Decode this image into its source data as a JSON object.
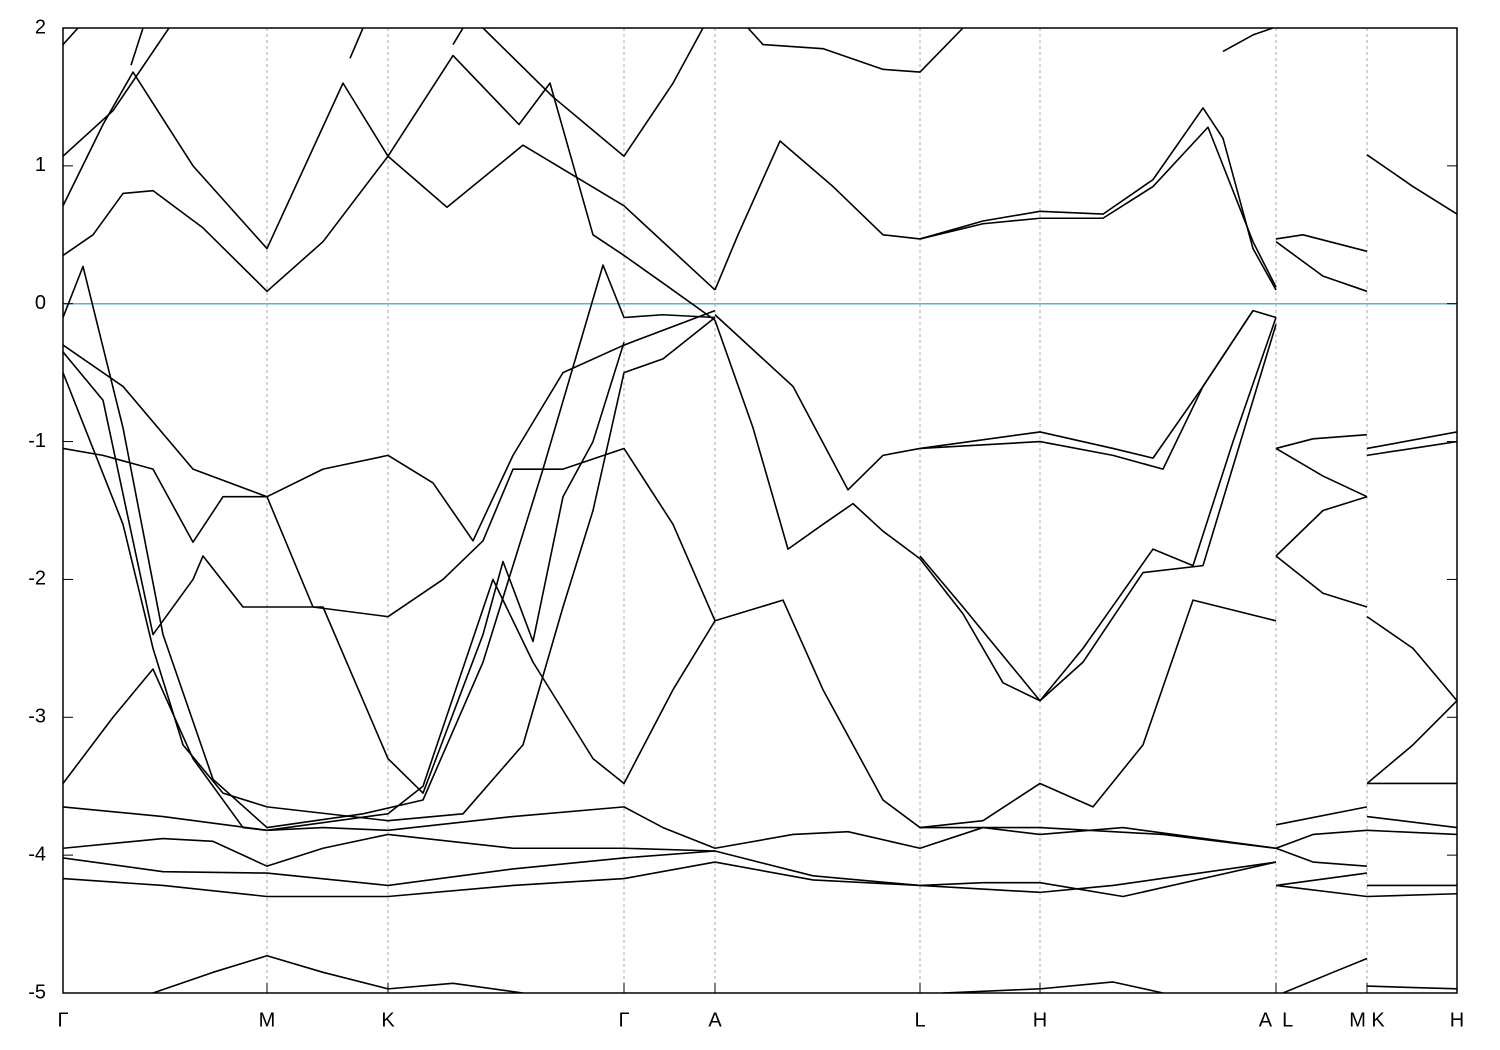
{
  "chart_data": {
    "type": "line",
    "xlim": [
      0,
      13.94
    ],
    "ylim": [
      -5,
      2
    ],
    "yticks": [
      -5,
      -4,
      -3,
      -2,
      -1,
      0,
      1,
      2
    ],
    "xticks": [
      {
        "value": 0,
        "label": "Γ"
      },
      {
        "value": 2.04,
        "label": "M"
      },
      {
        "value": 3.25,
        "label": "K"
      },
      {
        "value": 5.61,
        "label": "Γ"
      },
      {
        "value": 6.52,
        "label": "A"
      },
      {
        "value": 8.57,
        "label": "L"
      },
      {
        "value": 9.77,
        "label": "H"
      },
      {
        "value": 12.13,
        "label": "A  L"
      },
      {
        "value": 13.04,
        "label": "M K"
      },
      {
        "value": 13.94,
        "label": "H"
      }
    ],
    "grid": true,
    "zero_line": {
      "value": 0,
      "color": "#5ab4c8"
    },
    "series": [
      {
        "color": "#000000",
        "x": [
          0,
          0.2,
          0.6,
          1.0,
          1.5,
          2.04,
          3.0,
          3.6,
          4.2,
          4.8,
          5.4,
          5.61,
          6.0,
          6.52
        ],
        "values": [
          -0.1,
          0.27,
          -0.9,
          -2.4,
          -3.45,
          -3.8,
          -3.7,
          -3.6,
          -2.6,
          -1.2,
          0.28,
          -0.1,
          -0.08,
          -0.1
        ]
      },
      {
        "color": "#000000",
        "x": [
          0,
          0.6,
          1.3,
          2.04,
          2.6,
          3.25,
          3.7,
          4.1,
          4.5,
          5.0,
          5.61,
          6.52
        ],
        "values": [
          -0.3,
          -0.6,
          -1.2,
          -1.4,
          -1.2,
          -1.1,
          -1.3,
          -1.72,
          -1.1,
          -0.5,
          -0.3,
          -0.05
        ]
      },
      {
        "color": "#000000",
        "x": [
          0,
          0.6,
          0.9,
          1.2,
          1.6,
          2.04,
          3.25,
          4.0,
          4.6,
          5.0,
          5.3,
          5.61,
          6.0,
          6.52
        ],
        "values": [
          -0.5,
          -1.6,
          -2.5,
          -3.2,
          -3.55,
          -3.65,
          -3.75,
          -3.7,
          -3.2,
          -2.2,
          -1.5,
          -0.5,
          -0.4,
          -0.1
        ]
      },
      {
        "color": "#000000",
        "x": [
          0,
          0.4,
          0.9,
          1.3,
          1.6,
          2.04,
          2.5,
          3.25,
          3.8,
          4.2,
          4.5,
          5.0,
          5.61,
          6.1,
          6.52
        ],
        "values": [
          -1.05,
          -1.1,
          -1.2,
          -1.73,
          -1.4,
          -1.4,
          -2.2,
          -2.27,
          -2.0,
          -1.72,
          -1.2,
          -1.2,
          -1.05,
          -1.6,
          -2.3
        ]
      },
      {
        "color": "#000000",
        "x": [
          0,
          0.5,
          0.9,
          1.3,
          1.8,
          2.04,
          3.25,
          3.6,
          4.3,
          4.7,
          5.3,
          5.61,
          6.1,
          6.52
        ],
        "values": [
          -3.48,
          -3.0,
          -2.65,
          -3.3,
          -3.8,
          -3.82,
          -3.7,
          -3.5,
          -2.0,
          -2.6,
          -3.3,
          -3.48,
          -2.8,
          -2.3
        ]
      },
      {
        "color": "#000000",
        "x": [
          0,
          0.4,
          0.9,
          1.3,
          1.4,
          1.8,
          2.04,
          2.6,
          3.25,
          3.6,
          4.2,
          4.4,
          4.7,
          5.0,
          5.3,
          5.61
        ],
        "values": [
          -0.35,
          -0.7,
          -2.4,
          -2.0,
          -1.83,
          -2.2,
          -2.2,
          -2.2,
          -3.3,
          -3.55,
          -2.4,
          -1.87,
          -2.45,
          -1.4,
          -1.0,
          -0.28
        ]
      },
      {
        "color": "#000000",
        "x": [
          0,
          1.0,
          2.04,
          2.6,
          3.25,
          4.5,
          5.61,
          6.0,
          6.52
        ],
        "values": [
          -3.65,
          -3.72,
          -3.82,
          -3.8,
          -3.82,
          -3.72,
          -3.65,
          -3.8,
          -3.95
        ]
      },
      {
        "color": "#000000",
        "x": [
          0,
          1.0,
          1.5,
          2.04,
          2.6,
          3.25,
          4.5,
          5.61,
          6.52
        ],
        "values": [
          -3.95,
          -3.88,
          -3.9,
          -4.08,
          -3.95,
          -3.85,
          -3.95,
          -3.95,
          -3.97
        ]
      },
      {
        "color": "#000000",
        "x": [
          0,
          1.0,
          2.04,
          3.25,
          4.5,
          5.61,
          6.52
        ],
        "values": [
          -4.02,
          -4.12,
          -4.13,
          -4.22,
          -4.1,
          -4.02,
          -3.97
        ]
      },
      {
        "color": "#000000",
        "x": [
          0,
          1.0,
          2.04,
          3.25,
          4.5,
          5.61,
          6.52
        ],
        "values": [
          -4.17,
          -4.22,
          -4.3,
          -4.3,
          -4.22,
          -4.17,
          -4.05
        ]
      },
      {
        "color": "#000000",
        "x": [
          0.9,
          1.5,
          2.04,
          2.6,
          3.25,
          3.9,
          4.6
        ],
        "values": [
          -5,
          -4.85,
          -4.73,
          -4.85,
          -4.97,
          -4.93,
          -5
        ]
      },
      {
        "color": "#000000",
        "x": [
          0,
          0.3,
          0.6,
          0.9,
          1.4,
          2.04,
          2.6,
          3.25,
          3.9,
          4.56,
          4.87,
          5.3,
          5.61,
          6.0,
          6.52
        ],
        "values": [
          0.35,
          0.5,
          0.8,
          0.82,
          0.55,
          0.09,
          0.45,
          1.07,
          1.8,
          1.3,
          1.6,
          0.5,
          0.35,
          0.15,
          -0.12
        ]
      },
      {
        "color": "#000000",
        "x": [
          0,
          0.4,
          0.7,
          1.3,
          2.04,
          2.8,
          3.25,
          3.84,
          4.6,
          5.61,
          6.52
        ],
        "values": [
          0.71,
          1.3,
          1.68,
          1.0,
          0.4,
          1.6,
          1.07,
          0.7,
          1.15,
          0.71,
          0.1
        ]
      },
      {
        "color": "#000000",
        "x": [
          0,
          0.5,
          1.06
        ],
        "values": [
          1.07,
          1.4,
          2.0
        ]
      },
      {
        "color": "#000000",
        "x": [
          4.2,
          4.9,
          5.61,
          6.1,
          6.4
        ],
        "values": [
          2.0,
          1.5,
          1.07,
          1.6,
          2.0
        ]
      },
      {
        "color": "#000000",
        "x": [
          0,
          0.15,
          0.45,
          0.68,
          0.8,
          2.7,
          2.87,
          3.0,
          3.7,
          3.9,
          4.0
        ],
        "values": [
          1.88,
          2.0,
          null,
          1.73,
          2.0,
          null,
          1.78,
          2.0,
          null,
          1.88,
          2.0
        ]
      },
      {
        "color": "#000000",
        "x": [
          6.52,
          6.75,
          7.17,
          7.7,
          8.2,
          8.57,
          9.2,
          9.77,
          10.4,
          10.9,
          11.4,
          11.6,
          11.9,
          12.13
        ],
        "values": [
          0.1,
          0.5,
          1.18,
          0.85,
          0.5,
          0.47,
          0.6,
          0.67,
          0.65,
          0.9,
          1.42,
          1.2,
          0.4,
          0.1
        ]
      },
      {
        "color": "#000000",
        "x": [
          8.57,
          9.2,
          9.77,
          10.4,
          10.9,
          11.45,
          11.9,
          12.13
        ],
        "values": [
          0.47,
          0.58,
          0.62,
          0.62,
          0.85,
          1.28,
          0.45,
          0.12
        ]
      },
      {
        "color": "#000000",
        "x": [
          6.85,
          7.0,
          7.6,
          8.2,
          8.57,
          9.0,
          11.3,
          11.6,
          11.9,
          12.1
        ],
        "values": [
          2.0,
          1.88,
          1.85,
          1.7,
          1.68,
          2.0,
          null,
          1.83,
          1.95,
          2.0
        ]
      },
      {
        "color": "#000000",
        "x": [
          6.52,
          7.3,
          7.85,
          8.2,
          8.57,
          9.77,
          10.5,
          11.0,
          11.4,
          11.9,
          12.13
        ],
        "values": [
          -0.08,
          -0.6,
          -1.35,
          -1.1,
          -1.05,
          -1.0,
          -1.1,
          -1.2,
          -0.6,
          -0.05,
          -0.1
        ]
      },
      {
        "color": "#000000",
        "x": [
          8.57,
          9.77,
          10.5,
          10.9,
          11.4,
          11.9
        ],
        "values": [
          -1.05,
          -0.93,
          -1.05,
          -1.12,
          -0.6,
          -0.05
        ]
      },
      {
        "color": "#000000",
        "x": [
          6.52,
          6.9,
          7.25,
          7.6,
          7.9,
          8.2,
          8.57,
          9.0,
          9.4,
          9.77,
          10.2,
          10.9,
          11.3,
          11.7,
          12.13
        ],
        "values": [
          -0.12,
          -0.9,
          -1.78,
          -1.6,
          -1.45,
          -1.65,
          -1.85,
          -2.25,
          -2.75,
          -2.88,
          -2.5,
          -1.78,
          -1.9,
          -1.0,
          -0.1
        ]
      },
      {
        "color": "#000000",
        "x": [
          8.57,
          9.0,
          9.77,
          10.2,
          10.8,
          11.4,
          12.13
        ],
        "values": [
          -1.83,
          -2.2,
          -2.88,
          -2.6,
          -1.95,
          -1.9,
          -0.15
        ]
      },
      {
        "color": "#000000",
        "x": [
          6.52,
          7.2,
          7.6,
          8.2,
          8.57,
          9.2,
          9.77,
          10.3,
          10.8,
          11.3,
          12.13
        ],
        "values": [
          -2.3,
          -2.15,
          -2.8,
          -3.6,
          -3.8,
          -3.75,
          -3.48,
          -3.65,
          -3.2,
          -2.15,
          -2.3
        ]
      },
      {
        "color": "#000000",
        "x": [
          6.52,
          7.3,
          7.85,
          8.57,
          9.2,
          9.77,
          10.6,
          12.13
        ],
        "values": [
          -3.95,
          -3.85,
          -3.83,
          -3.95,
          -3.8,
          -3.85,
          -3.8,
          -3.95
        ]
      },
      {
        "color": "#000000",
        "x": [
          6.52,
          7.5,
          8.57,
          9.2,
          9.77,
          10.6,
          12.13
        ],
        "values": [
          -3.97,
          -4.15,
          -4.22,
          -4.2,
          -4.2,
          -4.3,
          -4.05
        ]
      },
      {
        "color": "#000000",
        "x": [
          6.52,
          7.5,
          8.57,
          9.77,
          10.5,
          12.13
        ],
        "values": [
          -4.05,
          -4.18,
          -4.22,
          -4.27,
          -4.22,
          -4.05
        ]
      },
      {
        "color": "#000000",
        "x": [
          8.57,
          9.77,
          11.0,
          12.13
        ],
        "values": [
          -3.8,
          -3.8,
          -3.85,
          -3.95
        ]
      },
      {
        "color": "#000000",
        "x": [
          8.8,
          9.77,
          10.5,
          11.0
        ],
        "values": [
          -5,
          -4.97,
          -4.92,
          -5
        ]
      },
      {
        "color": "#000000",
        "x": [
          12.13,
          12.4,
          13.04
        ],
        "values": [
          0.47,
          0.5,
          0.38
        ]
      },
      {
        "color": "#000000",
        "x": [
          12.13,
          12.6,
          13.04
        ],
        "values": [
          0.45,
          0.2,
          0.09
        ]
      },
      {
        "color": "#000000",
        "x": [
          12.13,
          12.5,
          13.04
        ],
        "values": [
          -1.05,
          -0.98,
          -0.95
        ]
      },
      {
        "color": "#000000",
        "x": [
          12.13,
          12.6,
          13.04
        ],
        "values": [
          -1.05,
          -1.25,
          -1.4
        ]
      },
      {
        "color": "#000000",
        "x": [
          12.13,
          12.6,
          13.04
        ],
        "values": [
          -1.83,
          -1.5,
          -1.4
        ]
      },
      {
        "color": "#000000",
        "x": [
          12.13,
          12.6,
          13.04
        ],
        "values": [
          -1.83,
          -2.1,
          -2.2
        ]
      },
      {
        "color": "#000000",
        "x": [
          12.13,
          13.04
        ],
        "values": [
          -3.78,
          -3.65
        ]
      },
      {
        "color": "#000000",
        "x": [
          12.13,
          12.5,
          13.04
        ],
        "values": [
          -3.95,
          -3.85,
          -3.82
        ]
      },
      {
        "color": "#000000",
        "x": [
          12.13,
          12.5,
          13.04
        ],
        "values": [
          -3.95,
          -4.05,
          -4.08
        ]
      },
      {
        "color": "#000000",
        "x": [
          12.13,
          13.04
        ],
        "values": [
          -4.22,
          -4.13
        ]
      },
      {
        "color": "#000000",
        "x": [
          12.13,
          13.04
        ],
        "values": [
          -4.22,
          -4.3
        ]
      },
      {
        "color": "#000000",
        "x": [
          12.2,
          12.7,
          13.04
        ],
        "values": [
          -5,
          -4.85,
          -4.75
        ]
      },
      {
        "color": "#000000",
        "x": [
          13.04,
          13.5,
          13.94
        ],
        "values": [
          1.08,
          0.85,
          0.65
        ]
      },
      {
        "color": "#000000",
        "x": [
          13.04,
          13.94
        ],
        "values": [
          -1.05,
          -0.93
        ]
      },
      {
        "color": "#000000",
        "x": [
          13.04,
          13.94
        ],
        "values": [
          -1.1,
          -1.0
        ]
      },
      {
        "color": "#000000",
        "x": [
          13.04,
          13.5,
          13.94
        ],
        "values": [
          -2.27,
          -2.5,
          -2.88
        ]
      },
      {
        "color": "#000000",
        "x": [
          13.04,
          13.5,
          13.94
        ],
        "values": [
          -3.48,
          -3.2,
          -2.88
        ]
      },
      {
        "color": "#000000",
        "x": [
          13.04,
          13.94
        ],
        "values": [
          -3.48,
          -3.48
        ]
      },
      {
        "color": "#000000",
        "x": [
          13.04,
          13.94
        ],
        "values": [
          -3.72,
          -3.8
        ]
      },
      {
        "color": "#000000",
        "x": [
          13.04,
          13.94
        ],
        "values": [
          -3.82,
          -3.85
        ]
      },
      {
        "color": "#000000",
        "x": [
          13.04,
          13.94
        ],
        "values": [
          -4.22,
          -4.22
        ]
      },
      {
        "color": "#000000",
        "x": [
          13.04,
          13.94
        ],
        "values": [
          -4.3,
          -4.28
        ]
      },
      {
        "color": "#000000",
        "x": [
          13.04,
          13.94
        ],
        "values": [
          -4.95,
          -4.97
        ]
      }
    ]
  }
}
